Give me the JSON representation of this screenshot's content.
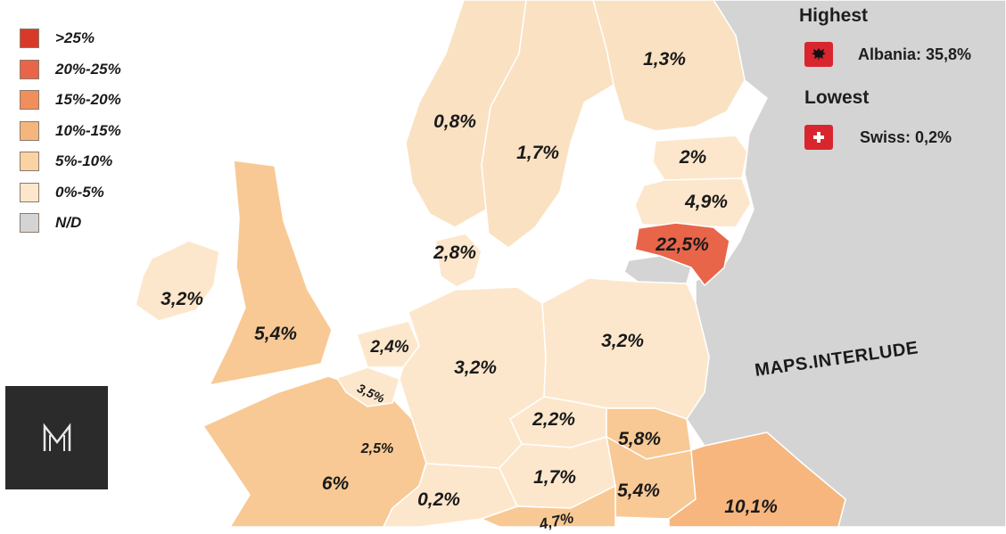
{
  "legend": [
    {
      "label": ">25%",
      "color": "#d73a28"
    },
    {
      "label": "20%-25%",
      "color": "#e8654a"
    },
    {
      "label": "15%-20%",
      "color": "#f08e5c"
    },
    {
      "label": "10%-15%",
      "color": "#f5b67e"
    },
    {
      "label": "5%-10%",
      "color": "#f9d3a4"
    },
    {
      "label": "0%-5%",
      "color": "#fde7cc"
    },
    {
      "label": "N/D",
      "color": "#d4d4d4"
    }
  ],
  "highest": {
    "heading": "Highest",
    "text": "Albania: 35,8%",
    "flag_icon": "albania-flag-icon"
  },
  "lowest": {
    "heading": "Lowest",
    "text": "Swiss: 0,2%",
    "flag_icon": "swiss-flag-icon"
  },
  "watermark": "MAPS.INTERLUDE",
  "logo_icon": "maps-interlude-logo-icon",
  "regions": [
    {
      "key": "finland",
      "label": "1,3%"
    },
    {
      "key": "norway",
      "label": "0,8%"
    },
    {
      "key": "sweden",
      "label": "1,7%"
    },
    {
      "key": "estonia",
      "label": "2%"
    },
    {
      "key": "latvia",
      "label": "4,9%"
    },
    {
      "key": "lithuania",
      "label": "22,5%"
    },
    {
      "key": "denmark",
      "label": "2,8%"
    },
    {
      "key": "ireland",
      "label": "3,2%"
    },
    {
      "key": "uk",
      "label": "5,4%"
    },
    {
      "key": "netherlands",
      "label": "2,4%"
    },
    {
      "key": "belgium",
      "label": "3,5%"
    },
    {
      "key": "luxembourg",
      "label": "2,5%"
    },
    {
      "key": "germany",
      "label": "3,2%"
    },
    {
      "key": "poland",
      "label": "3,2%"
    },
    {
      "key": "czechia",
      "label": "2,2%"
    },
    {
      "key": "slovakia",
      "label": "5,8%"
    },
    {
      "key": "hungary",
      "label": "5,4%"
    },
    {
      "key": "austria",
      "label": "1,7%"
    },
    {
      "key": "switzerland",
      "label": "0,2%"
    },
    {
      "key": "france",
      "label": "6%"
    },
    {
      "key": "romania",
      "label": "10,1%"
    },
    {
      "key": "slovenia",
      "label": "4,7%"
    }
  ]
}
